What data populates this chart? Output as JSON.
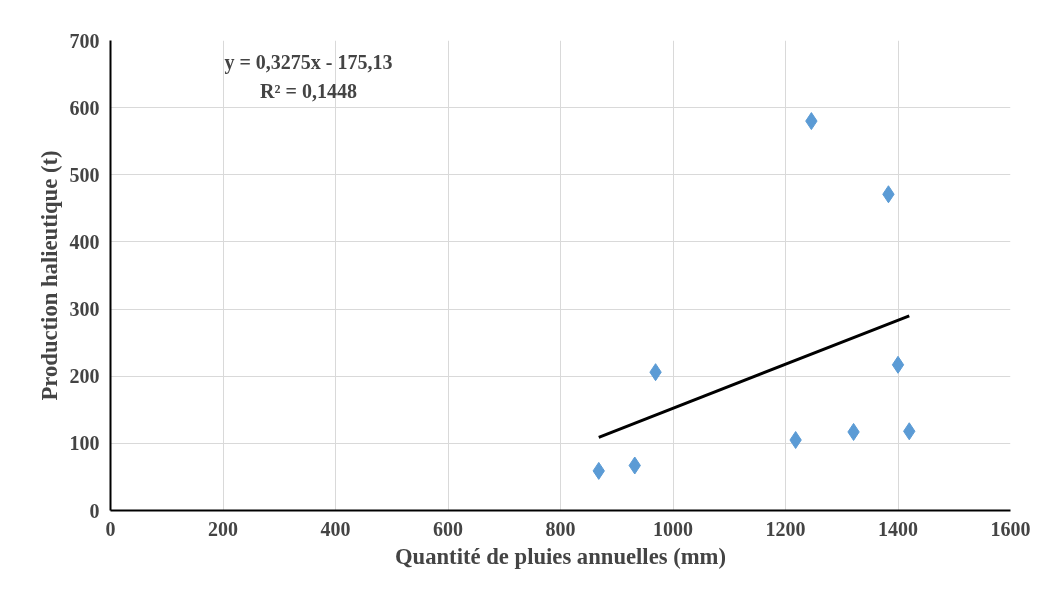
{
  "chart_data": {
    "type": "scatter",
    "xlabel": "Quantité de pluies annuelles (mm)",
    "ylabel": "Production halieutique (t)",
    "annotations": [
      "y = 0,3275x - 175,13",
      "R² = 0,1448"
    ],
    "xlim": [
      0,
      1600
    ],
    "xticks": [
      0,
      200,
      400,
      600,
      800,
      1000,
      1200,
      1400,
      1600
    ],
    "ylim": [
      0,
      700
    ],
    "yticks": [
      0,
      100,
      200,
      300,
      400,
      500,
      600,
      700
    ],
    "grid": true,
    "marker": "diamond",
    "series": [
      {
        "color": "#5b9bd5",
        "x": [
          868,
          932,
          969,
          1218,
          1246,
          1321,
          1383,
          1400,
          1420
        ],
        "values": [
          59,
          67,
          206,
          105,
          580,
          117,
          471,
          217,
          118
        ]
      },
      {
        "type": "line",
        "color": "#000000",
        "x": [
          868,
          1420
        ],
        "values": [
          109,
          290
        ],
        "marker": "none",
        "line_style": "solid"
      }
    ]
  }
}
